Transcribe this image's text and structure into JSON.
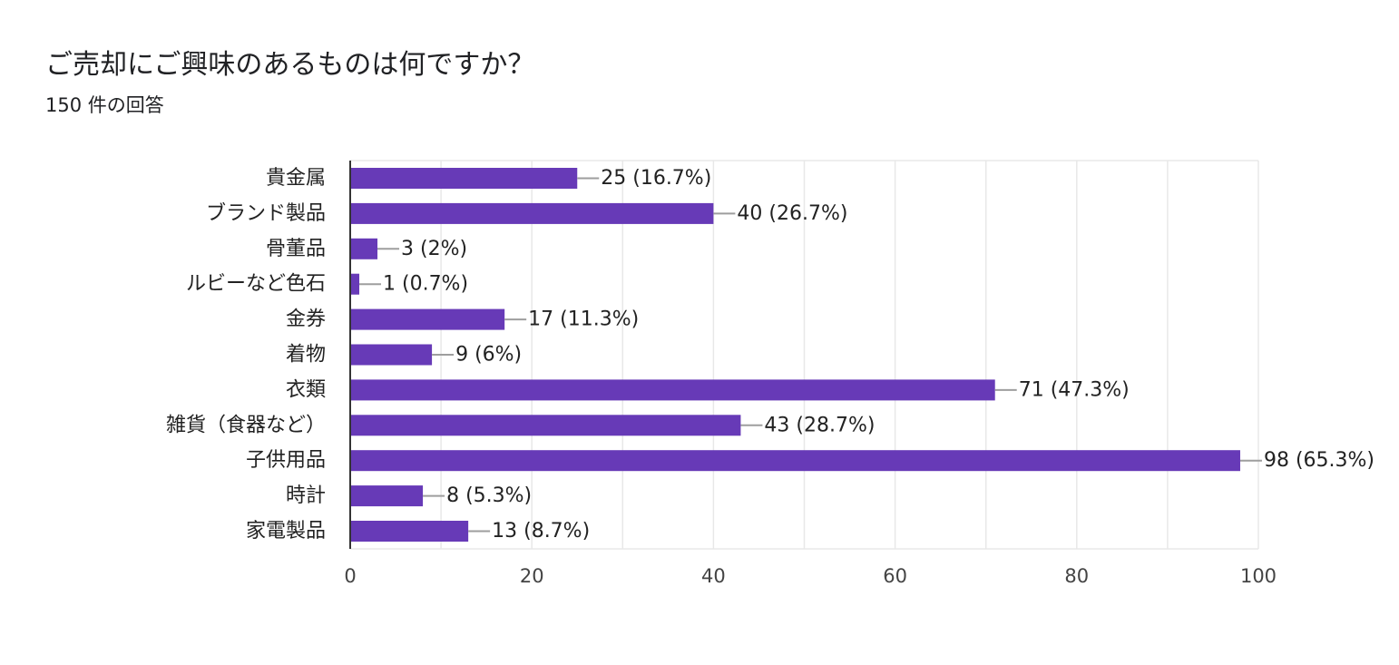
{
  "question": {
    "title": "ご売却にご興味のあるものは何ですか？",
    "response_count": "150 件の回答"
  },
  "colors": {
    "bar": "#673ab7",
    "grid": "#e8e8e8",
    "axis": "#333333",
    "leader": "#9e9e9e"
  },
  "chart_data": {
    "type": "bar",
    "orientation": "horizontal",
    "title": "ご売却にご興味のあるものは何ですか？",
    "subtitle": "150 件の回答",
    "categories": [
      "貴金属",
      "ブランド製品",
      "骨董品",
      "ルビーなど色石",
      "金券",
      "着物",
      "衣類",
      "雑貨（食器など）",
      "子供用品",
      "時計",
      "家電製品"
    ],
    "values": [
      25,
      40,
      3,
      1,
      17,
      9,
      71,
      43,
      98,
      8,
      13
    ],
    "data_labels": [
      "25 (16.7%)",
      "40 (26.7%)",
      "3 (2%)",
      "1 (0.7%)",
      "17 (11.3%)",
      "9 (6%)",
      "71 (47.3%)",
      "43 (28.7%)",
      "98 (65.3%)",
      "8 (5.3%)",
      "13 (8.7%)"
    ],
    "xlim": [
      0,
      100
    ],
    "xticks": [
      0,
      20,
      40,
      60,
      80,
      100
    ],
    "xtick_labels": [
      "0",
      "20",
      "40",
      "60",
      "80",
      "100"
    ],
    "grid": true,
    "legend": false,
    "xlabel": "",
    "ylabel": ""
  }
}
